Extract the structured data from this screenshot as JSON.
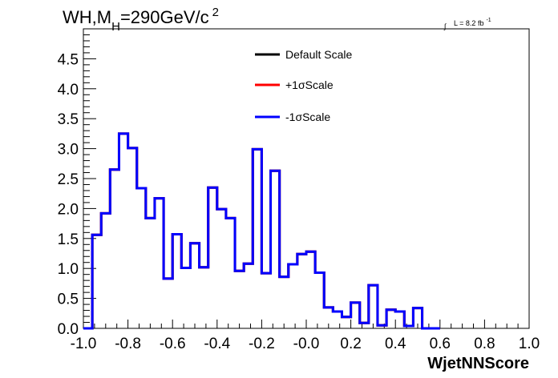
{
  "chart_data": {
    "type": "histogram",
    "title": "WH,M",
    "title_sub": "H",
    "title_rest": "=290GeV/c",
    "title_sup": "2",
    "lumi": {
      "integral_symbol": "∫",
      "text": "L = 8.2 fb",
      "sup": "-1"
    },
    "xlabel": "WjetNNScore",
    "xlim": [
      -1.0,
      1.0
    ],
    "ylim": [
      0.0,
      5.0
    ],
    "x_ticks": [
      "-1.0",
      "-0.8",
      "-0.6",
      "-0.4",
      "-0.2",
      "-0.0",
      "0.2",
      "0.4",
      "0.6",
      "0.8",
      "1.0"
    ],
    "y_ticks": [
      "0.0",
      "0.5",
      "1.0",
      "1.5",
      "2.0",
      "2.5",
      "3.0",
      "3.5",
      "4.0",
      "4.5"
    ],
    "bin_edges_start": -1.0,
    "bin_width": 0.04,
    "series": [
      {
        "name": "Default Scale",
        "color": "#000000",
        "values": [
          0.0,
          1.56,
          1.92,
          2.65,
          3.25,
          3.01,
          2.34,
          1.84,
          2.17,
          0.83,
          1.57,
          1.01,
          1.42,
          1.02,
          2.35,
          1.99,
          1.84,
          0.96,
          1.08,
          2.99,
          0.92,
          2.63,
          0.86,
          1.07,
          1.24,
          1.28,
          0.93,
          0.35,
          0.28,
          0.19,
          0.43,
          0.09,
          0.72,
          0.05,
          0.31,
          0.28,
          0.04,
          0.34,
          0.0,
          0.0
        ]
      },
      {
        "name": "+1σScale",
        "color": "#ff0000",
        "values": [
          0.0,
          1.56,
          1.92,
          2.65,
          3.25,
          3.01,
          2.34,
          1.84,
          2.17,
          0.83,
          1.57,
          1.01,
          1.42,
          1.02,
          2.35,
          1.99,
          1.84,
          0.96,
          1.08,
          2.99,
          0.92,
          2.63,
          0.86,
          1.07,
          1.24,
          1.28,
          0.93,
          0.35,
          0.28,
          0.19,
          0.43,
          0.09,
          0.72,
          0.05,
          0.31,
          0.28,
          0.04,
          0.34,
          0.0,
          0.0
        ]
      },
      {
        "name": "-1σScale",
        "color": "#0000ff",
        "values": [
          0.0,
          1.56,
          1.92,
          2.65,
          3.25,
          3.01,
          2.34,
          1.84,
          2.17,
          0.83,
          1.57,
          1.01,
          1.42,
          1.02,
          2.35,
          1.99,
          1.84,
          0.96,
          1.08,
          2.99,
          0.92,
          2.63,
          0.86,
          1.07,
          1.24,
          1.28,
          0.93,
          0.35,
          0.28,
          0.19,
          0.43,
          0.09,
          0.72,
          0.05,
          0.31,
          0.28,
          0.04,
          0.34,
          0.0,
          0.0
        ]
      }
    ],
    "legend_position": "top-center"
  }
}
